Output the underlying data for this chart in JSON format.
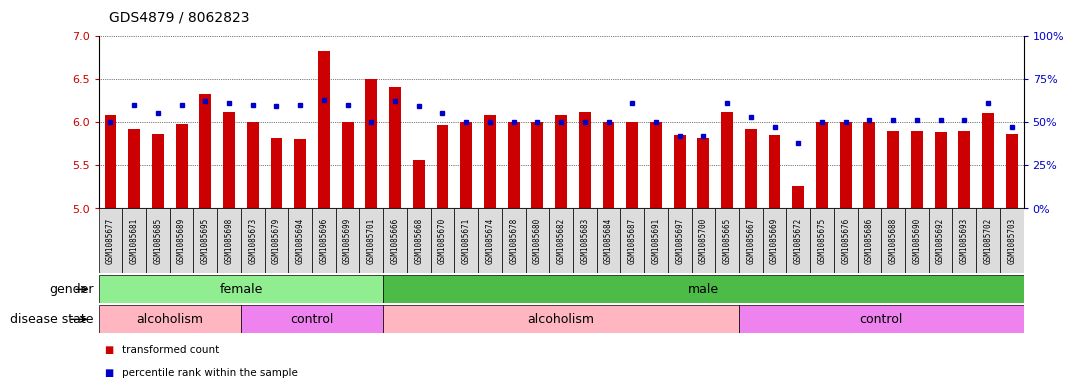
{
  "title": "GDS4879 / 8062823",
  "samples": [
    "GSM1085677",
    "GSM1085681",
    "GSM1085685",
    "GSM1085689",
    "GSM1085695",
    "GSM1085698",
    "GSM1085673",
    "GSM1085679",
    "GSM1085694",
    "GSM1085696",
    "GSM1085699",
    "GSM1085701",
    "GSM1085666",
    "GSM1085668",
    "GSM1085670",
    "GSM1085671",
    "GSM1085674",
    "GSM1085678",
    "GSM1085680",
    "GSM1085682",
    "GSM1085683",
    "GSM1085684",
    "GSM1085687",
    "GSM1085691",
    "GSM1085697",
    "GSM1085700",
    "GSM1085665",
    "GSM1085667",
    "GSM1085669",
    "GSM1085672",
    "GSM1085675",
    "GSM1085676",
    "GSM1085686",
    "GSM1085688",
    "GSM1085690",
    "GSM1085692",
    "GSM1085693",
    "GSM1085702",
    "GSM1085703"
  ],
  "bar_values": [
    6.08,
    5.92,
    5.86,
    5.98,
    6.32,
    6.12,
    6.0,
    5.82,
    5.8,
    6.82,
    6.0,
    6.5,
    6.4,
    5.56,
    5.96,
    6.0,
    6.08,
    6.0,
    6.0,
    6.08,
    6.12,
    6.0,
    6.0,
    6.0,
    5.85,
    5.82,
    6.12,
    5.92,
    5.85,
    5.26,
    6.0,
    6.0,
    6.0,
    5.9,
    5.9,
    5.88,
    5.9,
    6.1,
    5.86
  ],
  "percentile_values": [
    50,
    60,
    55,
    60,
    62,
    61,
    60,
    59,
    60,
    63,
    60,
    50,
    62,
    59,
    55,
    50,
    50,
    50,
    50,
    50,
    50,
    50,
    61,
    50,
    42,
    42,
    61,
    53,
    47,
    38,
    50,
    50,
    51,
    51,
    51,
    51,
    51,
    61,
    47
  ],
  "gender_groups": [
    {
      "label": "female",
      "start": 0,
      "end": 12,
      "color": "#90EE90"
    },
    {
      "label": "male",
      "start": 12,
      "end": 39,
      "color": "#4CBB47"
    }
  ],
  "disease_groups": [
    {
      "label": "alcoholism",
      "start": 0,
      "end": 6,
      "color": "#FFB6C1"
    },
    {
      "label": "control",
      "start": 6,
      "end": 12,
      "color": "#EE82EE"
    },
    {
      "label": "alcoholism",
      "start": 12,
      "end": 27,
      "color": "#FFB6C1"
    },
    {
      "label": "control",
      "start": 27,
      "end": 39,
      "color": "#EE82EE"
    }
  ],
  "bar_color": "#CC0000",
  "dot_color": "#0000CC",
  "ymin": 5.0,
  "ymax": 7.0,
  "yticks": [
    5.0,
    5.5,
    6.0,
    6.5,
    7.0
  ],
  "y2min": 0,
  "y2max": 100,
  "y2ticks": [
    0,
    25,
    50,
    75,
    100
  ],
  "y2ticklabels": [
    "0%",
    "25%",
    "50%",
    "75%",
    "100%"
  ],
  "legend_bar_label": "transformed count",
  "legend_dot_label": "percentile rank within the sample",
  "title_fontsize": 10,
  "tick_fontsize": 8,
  "label_fontsize": 9,
  "row_label_fontsize": 9,
  "sample_fontsize": 5.5
}
